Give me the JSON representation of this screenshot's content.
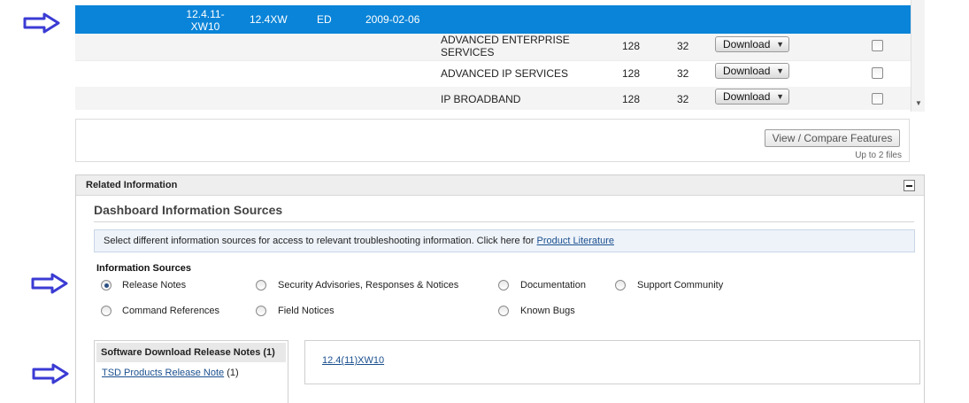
{
  "selected_release": {
    "release": "12.4.11-XW10",
    "release_line1": "12.4.11-",
    "release_line2": "XW10",
    "train": "12.4XW",
    "type": "ED",
    "date": "2009-02-06"
  },
  "rows": [
    {
      "image_line1": "ADVANCED ENTERPRISE",
      "image_line2": "SERVICES",
      "dram": "128",
      "flash": "32",
      "download_label": "Download"
    },
    {
      "image": "ADVANCED IP SERVICES",
      "dram": "128",
      "flash": "32",
      "download_label": "Download"
    },
    {
      "image": "IP BROADBAND",
      "dram": "128",
      "flash": "32",
      "download_label": "Download"
    }
  ],
  "compare": {
    "button_label": "View / Compare Features",
    "note": "Up to 2 files"
  },
  "related": {
    "title": "Related Information",
    "dashboard_title": "Dashboard Information Sources",
    "info_text": "Select different information sources for access to relevant troubleshooting information. Click here for ",
    "info_link": "Product Literature",
    "sources_heading": "Information Sources",
    "sources": [
      {
        "label": "Release Notes",
        "selected": true
      },
      {
        "label": "Security Advisories, Responses & Notices",
        "selected": false
      },
      {
        "label": "Documentation",
        "selected": false
      },
      {
        "label": "Support Community",
        "selected": false
      },
      {
        "label": "Command References",
        "selected": false
      },
      {
        "label": "Field Notices",
        "selected": false
      },
      {
        "label": "Known Bugs",
        "selected": false
      }
    ],
    "notes_heading": "Software Download Release Notes",
    "notes_count": "(1)",
    "notes_item_link": "TSD Products Release Note",
    "notes_item_count": "(1)",
    "version_link": "12.4(11)XW10"
  },
  "colors": {
    "selected_row": "#0a84d8",
    "annotation_arrow": "#3b3bd4",
    "link": "#1a4f8e"
  },
  "icons": [
    "right-arrow-annotation-icon",
    "left-arrow-annotation-icon",
    "dropdown-caret-icon",
    "collapse-minus-icon"
  ]
}
